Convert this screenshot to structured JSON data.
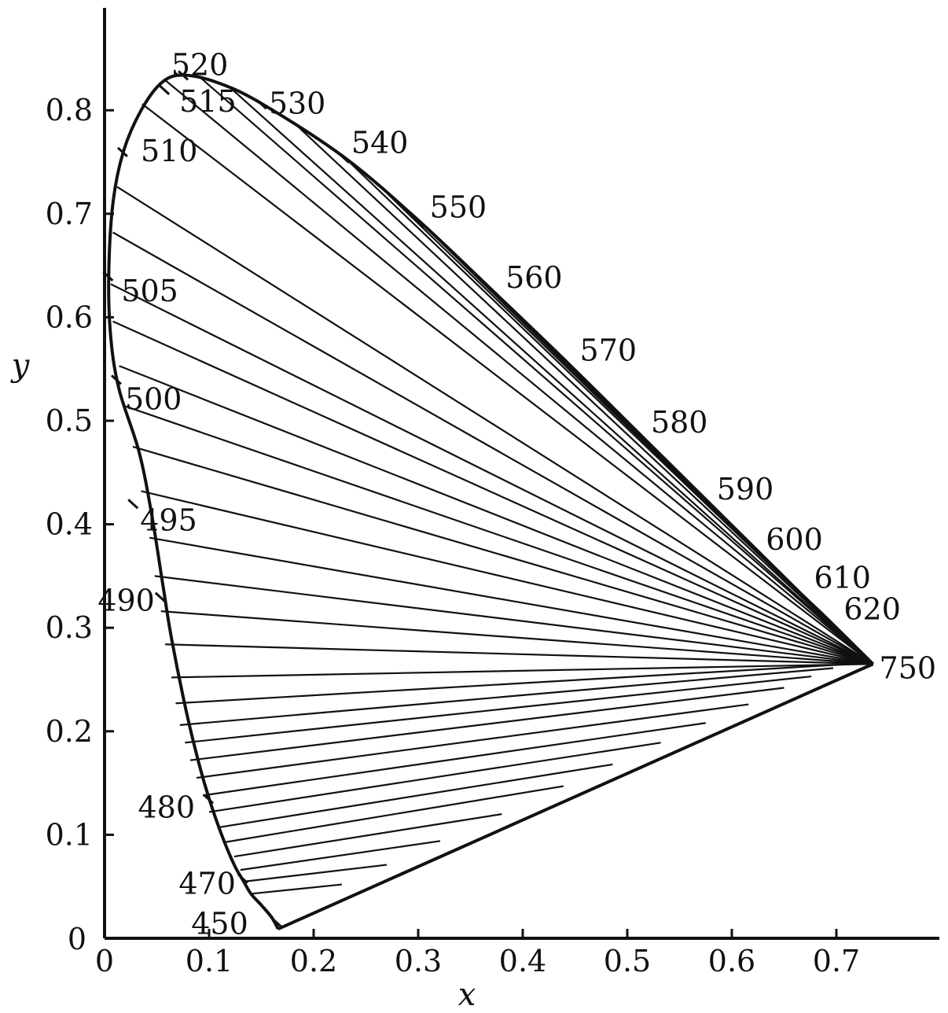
{
  "chart_data": {
    "type": "line",
    "title": "",
    "xlabel": "x",
    "ylabel": "y",
    "xlim": [
      0,
      0.8
    ],
    "ylim": [
      0,
      0.9
    ],
    "x_ticks": [
      0,
      0.1,
      0.2,
      0.3,
      0.4,
      0.5,
      0.6,
      0.7
    ],
    "x_tick_labels": [
      "0",
      "0.1",
      "0.2",
      "0.3",
      "0.4",
      "0.5",
      "0.6",
      "0.7"
    ],
    "y_ticks": [
      0.1,
      0.2,
      0.3,
      0.4,
      0.5,
      0.6,
      0.7,
      0.8
    ],
    "y_tick_labels": [
      "0.1",
      "0.2",
      "0.3",
      "0.4",
      "0.5",
      "0.6",
      "0.7",
      "0.8"
    ],
    "origin_y_label": "0",
    "grid": false,
    "legend": "none",
    "colors": {
      "ink": "#111111",
      "background": "#ffffff"
    },
    "series": [
      {
        "kind": "spectral-locus",
        "points": [
          {
            "x": 0.166,
            "y": 0.009
          },
          {
            "x": 0.16,
            "y": 0.02
          },
          {
            "x": 0.15,
            "y": 0.032
          },
          {
            "x": 0.14,
            "y": 0.043
          },
          {
            "x": 0.133,
            "y": 0.055
          },
          {
            "x": 0.124,
            "y": 0.071
          },
          {
            "x": 0.112,
            "y": 0.1
          },
          {
            "x": 0.1,
            "y": 0.135
          },
          {
            "x": 0.09,
            "y": 0.17
          },
          {
            "x": 0.078,
            "y": 0.22
          },
          {
            "x": 0.064,
            "y": 0.29
          },
          {
            "x": 0.056,
            "y": 0.34
          },
          {
            "x": 0.045,
            "y": 0.41
          },
          {
            "x": 0.033,
            "y": 0.47
          },
          {
            "x": 0.014,
            "y": 0.53
          },
          {
            "x": 0.006,
            "y": 0.58
          },
          {
            "x": 0.004,
            "y": 0.64
          },
          {
            "x": 0.008,
            "y": 0.71
          },
          {
            "x": 0.018,
            "y": 0.76
          },
          {
            "x": 0.035,
            "y": 0.8
          },
          {
            "x": 0.055,
            "y": 0.827
          },
          {
            "x": 0.076,
            "y": 0.834
          },
          {
            "x": 0.11,
            "y": 0.826
          },
          {
            "x": 0.151,
            "y": 0.806
          },
          {
            "x": 0.23,
            "y": 0.754
          },
          {
            "x": 0.302,
            "y": 0.692
          },
          {
            "x": 0.373,
            "y": 0.624
          },
          {
            "x": 0.444,
            "y": 0.555
          },
          {
            "x": 0.512,
            "y": 0.487
          },
          {
            "x": 0.575,
            "y": 0.424
          },
          {
            "x": 0.625,
            "y": 0.374
          },
          {
            "x": 0.665,
            "y": 0.334
          },
          {
            "x": 0.692,
            "y": 0.308
          },
          {
            "x": 0.735,
            "y": 0.265
          }
        ]
      },
      {
        "kind": "purple-line",
        "points": [
          {
            "x": 0.166,
            "y": 0.009
          },
          {
            "x": 0.735,
            "y": 0.265
          }
        ]
      }
    ],
    "fan_lines": [
      {
        "from": {
          "x": 0.14,
          "y": 0.043
        },
        "to": {
          "x": 0.227,
          "y": 0.052
        }
      },
      {
        "from": {
          "x": 0.135,
          "y": 0.055
        },
        "to": {
          "x": 0.27,
          "y": 0.071
        }
      },
      {
        "from": {
          "x": 0.13,
          "y": 0.066
        },
        "to": {
          "x": 0.321,
          "y": 0.094
        }
      },
      {
        "from": {
          "x": 0.124,
          "y": 0.079
        },
        "to": {
          "x": 0.38,
          "y": 0.12
        }
      },
      {
        "from": {
          "x": 0.116,
          "y": 0.093
        },
        "to": {
          "x": 0.439,
          "y": 0.147
        }
      },
      {
        "from": {
          "x": 0.108,
          "y": 0.107
        },
        "to": {
          "x": 0.486,
          "y": 0.168
        }
      },
      {
        "from": {
          "x": 0.1,
          "y": 0.122
        },
        "to": {
          "x": 0.532,
          "y": 0.189
        }
      },
      {
        "from": {
          "x": 0.094,
          "y": 0.138
        },
        "to": {
          "x": 0.575,
          "y": 0.208
        }
      },
      {
        "from": {
          "x": 0.088,
          "y": 0.155
        },
        "to": {
          "x": 0.616,
          "y": 0.226
        }
      },
      {
        "from": {
          "x": 0.082,
          "y": 0.172
        },
        "to": {
          "x": 0.65,
          "y": 0.242
        }
      },
      {
        "from": {
          "x": 0.077,
          "y": 0.189
        },
        "to": {
          "x": 0.676,
          "y": 0.253
        }
      },
      {
        "from": {
          "x": 0.072,
          "y": 0.206
        },
        "to": {
          "x": 0.697,
          "y": 0.261
        }
      },
      {
        "from": {
          "x": 0.068,
          "y": 0.227
        },
        "to": {
          "x": 0.715,
          "y": 0.265
        }
      },
      {
        "from": {
          "x": 0.064,
          "y": 0.252
        },
        "to": {
          "x": 0.735,
          "y": 0.265
        }
      },
      {
        "from": {
          "x": 0.058,
          "y": 0.284
        },
        "to": {
          "x": 0.735,
          "y": 0.265
        }
      },
      {
        "from": {
          "x": 0.054,
          "y": 0.316
        },
        "to": {
          "x": 0.735,
          "y": 0.265
        }
      },
      {
        "from": {
          "x": 0.048,
          "y": 0.35
        },
        "to": {
          "x": 0.735,
          "y": 0.265
        }
      },
      {
        "from": {
          "x": 0.043,
          "y": 0.387
        },
        "to": {
          "x": 0.735,
          "y": 0.265
        }
      },
      {
        "from": {
          "x": 0.035,
          "y": 0.432
        },
        "to": {
          "x": 0.735,
          "y": 0.265
        }
      },
      {
        "from": {
          "x": 0.027,
          "y": 0.475
        },
        "to": {
          "x": 0.735,
          "y": 0.265
        }
      },
      {
        "from": {
          "x": 0.02,
          "y": 0.514
        },
        "to": {
          "x": 0.735,
          "y": 0.265
        }
      },
      {
        "from": {
          "x": 0.014,
          "y": 0.553
        },
        "to": {
          "x": 0.735,
          "y": 0.265
        }
      },
      {
        "from": {
          "x": 0.008,
          "y": 0.596
        },
        "to": {
          "x": 0.735,
          "y": 0.265
        }
      },
      {
        "from": {
          "x": 0.006,
          "y": 0.632
        },
        "to": {
          "x": 0.735,
          "y": 0.265
        }
      },
      {
        "from": {
          "x": 0.008,
          "y": 0.682
        },
        "to": {
          "x": 0.735,
          "y": 0.265
        }
      },
      {
        "from": {
          "x": 0.012,
          "y": 0.726
        },
        "to": {
          "x": 0.735,
          "y": 0.265
        }
      },
      {
        "from": {
          "x": 0.036,
          "y": 0.806
        },
        "to": {
          "x": 0.735,
          "y": 0.265
        }
      },
      {
        "from": {
          "x": 0.058,
          "y": 0.829
        },
        "to": {
          "x": 0.735,
          "y": 0.265
        }
      },
      {
        "from": {
          "x": 0.09,
          "y": 0.833
        },
        "to": {
          "x": 0.735,
          "y": 0.265
        }
      },
      {
        "from": {
          "x": 0.12,
          "y": 0.822
        },
        "to": {
          "x": 0.735,
          "y": 0.265
        }
      },
      {
        "from": {
          "x": 0.18,
          "y": 0.789
        },
        "to": {
          "x": 0.735,
          "y": 0.265
        }
      },
      {
        "from": {
          "x": 0.23,
          "y": 0.754
        },
        "to": {
          "x": 0.735,
          "y": 0.265
        }
      },
      {
        "from": {
          "x": 0.27,
          "y": 0.72
        },
        "to": {
          "x": 0.735,
          "y": 0.265
        }
      },
      {
        "from": {
          "x": 0.302,
          "y": 0.692
        },
        "to": {
          "x": 0.735,
          "y": 0.265
        }
      },
      {
        "from": {
          "x": 0.34,
          "y": 0.656
        },
        "to": {
          "x": 0.735,
          "y": 0.265
        }
      },
      {
        "from": {
          "x": 0.373,
          "y": 0.624
        },
        "to": {
          "x": 0.735,
          "y": 0.265
        }
      },
      {
        "from": {
          "x": 0.41,
          "y": 0.589
        },
        "to": {
          "x": 0.735,
          "y": 0.265
        }
      },
      {
        "from": {
          "x": 0.444,
          "y": 0.555
        },
        "to": {
          "x": 0.735,
          "y": 0.265
        }
      },
      {
        "from": {
          "x": 0.478,
          "y": 0.521
        },
        "to": {
          "x": 0.735,
          "y": 0.265
        }
      },
      {
        "from": {
          "x": 0.512,
          "y": 0.487
        },
        "to": {
          "x": 0.735,
          "y": 0.265
        }
      }
    ],
    "wavelength_marks": [
      {
        "label": "450",
        "x": 0.166,
        "y": 0.015
      },
      {
        "label": "470",
        "x": 0.133,
        "y": 0.058
      },
      {
        "label": "480",
        "x": 0.1,
        "y": 0.135
      },
      {
        "label": "490",
        "x": 0.054,
        "y": 0.33
      },
      {
        "label": "495",
        "x": 0.028,
        "y": 0.42
      },
      {
        "label": "500",
        "x": 0.012,
        "y": 0.54
      },
      {
        "label": "505",
        "x": 0.004,
        "y": 0.64
      },
      {
        "label": "510",
        "x": 0.018,
        "y": 0.76
      },
      {
        "label": "515",
        "x": 0.058,
        "y": 0.82
      },
      {
        "label": "520",
        "x": 0.076,
        "y": 0.834
      },
      {
        "label": "530",
        "x": 0.151,
        "y": 0.806
      },
      {
        "label": "540",
        "x": 0.23,
        "y": 0.754
      },
      {
        "label": "550",
        "x": 0.302,
        "y": 0.692
      },
      {
        "label": "560",
        "x": 0.373,
        "y": 0.624
      },
      {
        "label": "570",
        "x": 0.444,
        "y": 0.555
      },
      {
        "label": "580",
        "x": 0.512,
        "y": 0.487
      },
      {
        "label": "590",
        "x": 0.575,
        "y": 0.424
      },
      {
        "label": "600",
        "x": 0.625,
        "y": 0.374
      },
      {
        "label": "610",
        "x": 0.665,
        "y": 0.334
      },
      {
        "label": "620",
        "x": 0.692,
        "y": 0.308
      },
      {
        "label": "750",
        "x": 0.735,
        "y": 0.265
      }
    ]
  }
}
